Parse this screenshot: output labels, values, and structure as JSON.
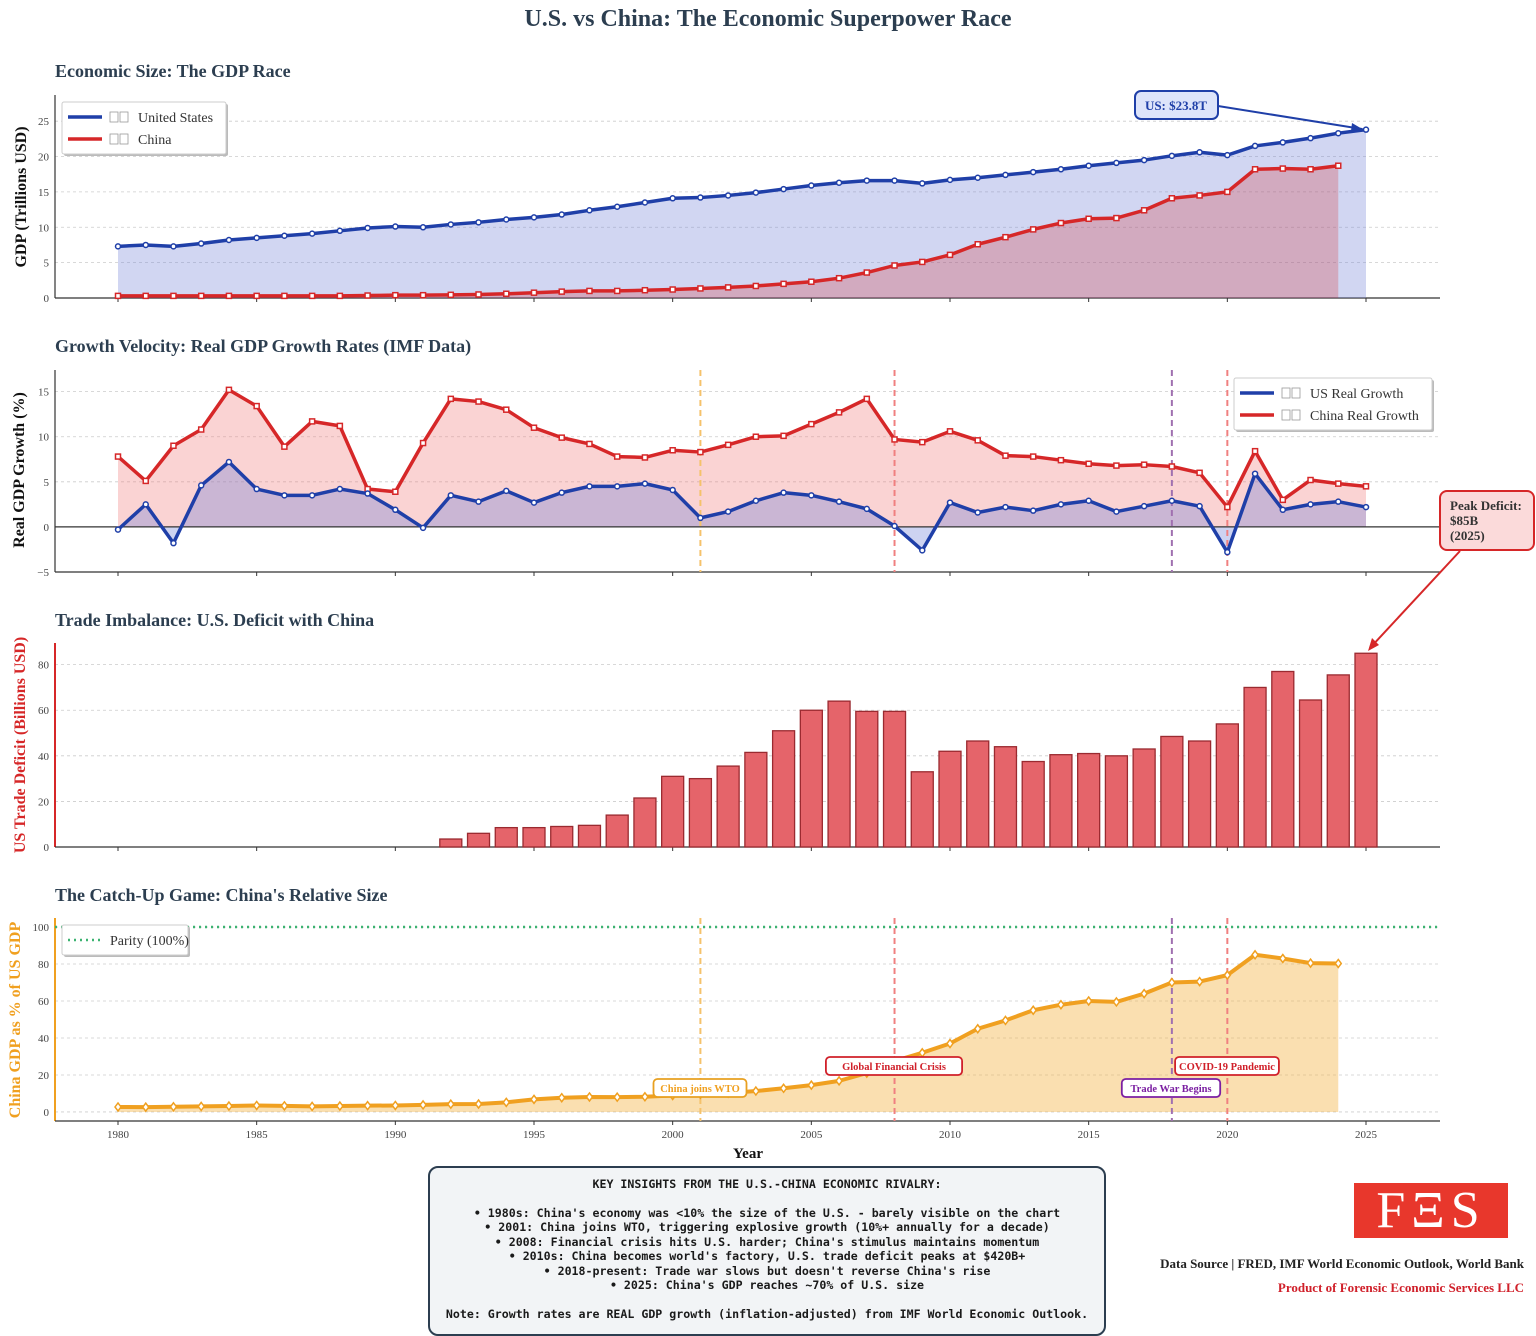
{
  "title": "U.S. vs China: The Economic Superpower Race",
  "colors": {
    "us": "#1f3fa8",
    "china": "#d62728",
    "deficit_bar": "#e5646a",
    "ratio": "#f0a020",
    "parity": "#3cb371",
    "wto": "#f5c26b",
    "crisis": "#f08080",
    "tradewar": "#a070b0",
    "title": "#2c3e50"
  },
  "chart_data": [
    {
      "type": "area",
      "title": "Economic Size: The GDP Race",
      "ylabel": "GDP (Trillions USD)",
      "ylim": [
        0,
        28.7
      ],
      "yticks": [
        0,
        5,
        10,
        15,
        20,
        25
      ],
      "grid": true,
      "legend": "top-left",
      "series": [
        {
          "name": "United States",
          "icon": "us-flag-emoji-missing-glyph",
          "x": [
            1980,
            1981,
            1982,
            1983,
            1984,
            1985,
            1986,
            1987,
            1988,
            1989,
            1990,
            1991,
            1992,
            1993,
            1994,
            1995,
            1996,
            1997,
            1998,
            1999,
            2000,
            2001,
            2002,
            2003,
            2004,
            2005,
            2006,
            2007,
            2008,
            2009,
            2010,
            2011,
            2012,
            2013,
            2014,
            2015,
            2016,
            2017,
            2018,
            2019,
            2020,
            2021,
            2022,
            2023,
            2024,
            2025
          ],
          "values": [
            7.3,
            7.5,
            7.3,
            7.7,
            8.2,
            8.5,
            8.8,
            9.1,
            9.5,
            9.9,
            10.1,
            10.0,
            10.4,
            10.7,
            11.1,
            11.4,
            11.8,
            12.4,
            12.9,
            13.5,
            14.1,
            14.2,
            14.5,
            14.9,
            15.4,
            15.9,
            16.3,
            16.6,
            16.6,
            16.2,
            16.7,
            17.0,
            17.4,
            17.8,
            18.2,
            18.7,
            19.1,
            19.5,
            20.1,
            20.6,
            20.2,
            21.5,
            22.0,
            22.6,
            23.3,
            23.8
          ]
        },
        {
          "name": "China",
          "icon": "china-flag-emoji-missing-glyph",
          "x": [
            1980,
            1981,
            1982,
            1983,
            1984,
            1985,
            1986,
            1987,
            1988,
            1989,
            1990,
            1991,
            1992,
            1993,
            1994,
            1995,
            1996,
            1997,
            1998,
            1999,
            2000,
            2001,
            2002,
            2003,
            2004,
            2005,
            2006,
            2007,
            2008,
            2009,
            2010,
            2011,
            2012,
            2013,
            2014,
            2015,
            2016,
            2017,
            2018,
            2019,
            2020,
            2021,
            2022,
            2023,
            2024
          ],
          "values": [
            0.3,
            0.3,
            0.3,
            0.3,
            0.3,
            0.3,
            0.3,
            0.3,
            0.3,
            0.35,
            0.4,
            0.4,
            0.45,
            0.5,
            0.6,
            0.75,
            0.9,
            1.0,
            1.0,
            1.1,
            1.2,
            1.35,
            1.5,
            1.7,
            2.0,
            2.3,
            2.8,
            3.6,
            4.6,
            5.1,
            6.1,
            7.6,
            8.6,
            9.7,
            10.6,
            11.2,
            11.3,
            12.4,
            14.1,
            14.5,
            15.0,
            18.2,
            18.3,
            18.2,
            18.7
          ]
        }
      ],
      "annotation": "US: $23.8T"
    },
    {
      "type": "line",
      "title": "Growth Velocity: Real GDP Growth Rates (IMF Data)",
      "ylabel": "Real GDP Growth (%)",
      "ylim": [
        -5,
        17.4
      ],
      "yticks": [
        -5,
        0,
        5,
        10,
        15
      ],
      "grid": true,
      "legend": "top-right",
      "x": [
        1980,
        1981,
        1982,
        1983,
        1984,
        1985,
        1986,
        1987,
        1988,
        1989,
        1990,
        1991,
        1992,
        1993,
        1994,
        1995,
        1996,
        1997,
        1998,
        1999,
        2000,
        2001,
        2002,
        2003,
        2004,
        2005,
        2006,
        2007,
        2008,
        2009,
        2010,
        2011,
        2012,
        2013,
        2014,
        2015,
        2016,
        2017,
        2018,
        2019,
        2020,
        2021,
        2022,
        2023,
        2024,
        2025
      ],
      "series": [
        {
          "name": "US Real Growth",
          "values": [
            -0.3,
            2.5,
            -1.8,
            4.6,
            7.2,
            4.2,
            3.5,
            3.5,
            4.2,
            3.7,
            1.9,
            -0.1,
            3.5,
            2.8,
            4.0,
            2.7,
            3.8,
            4.5,
            4.5,
            4.8,
            4.1,
            1.0,
            1.7,
            2.9,
            3.8,
            3.5,
            2.8,
            2.0,
            0.1,
            -2.6,
            2.7,
            1.6,
            2.2,
            1.8,
            2.5,
            2.9,
            1.7,
            2.3,
            2.9,
            2.3,
            -2.8,
            5.9,
            1.9,
            2.5,
            2.8,
            2.2
          ]
        },
        {
          "name": "China Real Growth",
          "values": [
            7.8,
            5.1,
            9.0,
            10.8,
            15.2,
            13.4,
            8.9,
            11.7,
            11.2,
            4.2,
            3.9,
            9.3,
            14.2,
            13.9,
            13.0,
            11.0,
            9.9,
            9.2,
            7.8,
            7.7,
            8.5,
            8.3,
            9.1,
            10.0,
            10.1,
            11.4,
            12.7,
            14.2,
            9.7,
            9.4,
            10.6,
            9.6,
            7.9,
            7.8,
            7.4,
            7.0,
            6.8,
            6.9,
            6.7,
            6.0,
            2.2,
            8.4,
            3.0,
            5.2,
            4.8,
            4.5
          ]
        }
      ],
      "event_lines": [
        2001,
        2008,
        2018,
        2020
      ]
    },
    {
      "type": "bar",
      "title": "Trade Imbalance: U.S. Deficit with China",
      "ylabel": "US Trade Deficit (Billions USD)",
      "ylim": [
        0,
        89.5
      ],
      "yticks": [
        0,
        20,
        40,
        60,
        80
      ],
      "grid": true,
      "categories": [
        1992,
        1993,
        1994,
        1995,
        1996,
        1997,
        1998,
        1999,
        2000,
        2001,
        2002,
        2003,
        2004,
        2005,
        2006,
        2007,
        2008,
        2009,
        2010,
        2011,
        2012,
        2013,
        2014,
        2015,
        2016,
        2017,
        2018,
        2019,
        2020,
        2021,
        2022,
        2023,
        2024,
        2025
      ],
      "values": [
        3.5,
        6,
        8.5,
        8.5,
        9,
        9.5,
        14,
        21.5,
        31,
        30,
        35.5,
        41.5,
        51,
        60,
        64,
        59.5,
        59.5,
        33,
        42,
        46.5,
        44,
        37.5,
        40.5,
        41,
        40,
        43,
        48.5,
        46.5,
        54,
        70,
        77,
        64.5,
        75.5,
        85
      ],
      "annotation": "Peak Deficit:\n$85B\n(2025)",
      "annotation_lines": [
        "Peak Deficit:",
        "$85B",
        "(2025)"
      ]
    },
    {
      "type": "area",
      "title": "The Catch-Up Game: China's Relative Size",
      "ylabel": "China GDP as % of US GDP",
      "xlabel": "Year",
      "ylim": [
        -4.9,
        104.9
      ],
      "yticks": [
        0,
        20,
        40,
        60,
        80,
        100
      ],
      "xlim": [
        1977.8,
        2027.8
      ],
      "xticks": [
        1980,
        1985,
        1990,
        1995,
        2000,
        2005,
        2010,
        2015,
        2020,
        2025
      ],
      "grid": true,
      "legend": "top-left",
      "x": [
        1980,
        1981,
        1982,
        1983,
        1984,
        1985,
        1986,
        1987,
        1988,
        1989,
        1990,
        1991,
        1992,
        1993,
        1994,
        1995,
        1996,
        1997,
        1998,
        1999,
        2000,
        2001,
        2002,
        2003,
        2004,
        2005,
        2006,
        2007,
        2008,
        2009,
        2010,
        2011,
        2012,
        2013,
        2014,
        2015,
        2016,
        2017,
        2018,
        2019,
        2020,
        2021,
        2022,
        2023,
        2024
      ],
      "values": [
        2.7,
        2.6,
        2.8,
        3.0,
        3.2,
        3.5,
        3.3,
        3.0,
        3.2,
        3.4,
        3.5,
        3.8,
        4.2,
        4.3,
        5.2,
        6.8,
        7.7,
        8.1,
        8.0,
        8.2,
        8.9,
        9.6,
        10.2,
        11.3,
        12.8,
        14.5,
        16.8,
        21,
        27.5,
        32,
        37,
        45,
        49.5,
        55,
        58,
        60,
        59.5,
        64,
        70,
        70.5,
        74,
        85,
        83,
        80.5,
        80.3
      ],
      "reference_line": {
        "name": "Parity (100%)",
        "value": 100
      },
      "events": [
        {
          "year": 2001,
          "label": "China joins WTO"
        },
        {
          "year": 2008,
          "label": "Global Financial Crisis"
        },
        {
          "year": 2018,
          "label": "Trade War Begins"
        },
        {
          "year": 2020,
          "label": "COVID-19 Pandemic"
        }
      ]
    }
  ],
  "insights": {
    "heading": "KEY INSIGHTS FROM THE U.S.-CHINA ECONOMIC RIVALRY:",
    "bullets": [
      "• 1980s: China's economy was <10% the size of the U.S. - barely visible on the chart",
      "• 2001: China joins WTO, triggering explosive growth (10%+ annually for a decade)",
      "• 2008: Financial crisis hits U.S. harder; China's stimulus maintains momentum",
      "• 2010s: China becomes world's factory, U.S. trade deficit peaks at $420B+",
      "• 2018-present: Trade war slows but doesn't reverse China's rise",
      "• 2025: China's GDP reaches ~70% of U.S. size"
    ],
    "note": "Note: Growth rates are REAL GDP growth (inflation-adjusted) from IMF World Economic Outlook."
  },
  "footer": {
    "logo_text": "FΞS",
    "data_source": "Data Source | FRED, IMF World Economic Outlook, World Bank",
    "product": "Product of Forensic Economic Services LLC"
  }
}
